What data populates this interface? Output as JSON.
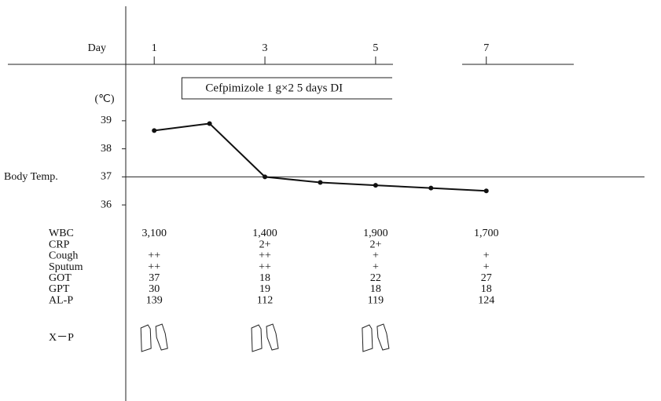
{
  "chart_data": {
    "type": "line",
    "x_label": "Day",
    "y_label": "Body Temp.",
    "y_unit": "(℃)",
    "x": [
      1,
      2,
      3,
      4,
      5,
      6,
      7
    ],
    "values": [
      38.65,
      38.9,
      37.0,
      36.8,
      36.7,
      36.6,
      36.5
    ],
    "color": "#111111",
    "xlim": [
      0.5,
      10
    ],
    "xticks": [
      1,
      3,
      5,
      7
    ],
    "ylim": [
      35.5,
      39.5
    ],
    "yticks": [
      36,
      37,
      38,
      39
    ],
    "hline": 37,
    "treatment": {
      "label": "Cefpimizole 1 g×2  5 days DI",
      "start": 1.5,
      "end": 5.3
    },
    "table": {
      "rows": [
        {
          "label": "WBC",
          "values": [
            "3,100",
            "1,400",
            "1,900",
            "1,700"
          ]
        },
        {
          "label": "CRP",
          "values": [
            null,
            "2+",
            "2+",
            null
          ]
        },
        {
          "label": "Cough",
          "values": [
            "++",
            "++",
            "+",
            "+"
          ]
        },
        {
          "label": "Sputum",
          "values": [
            "++",
            "++",
            "+",
            "+"
          ]
        },
        {
          "label": "GOT",
          "values": [
            "37",
            "18",
            "22",
            "27"
          ]
        },
        {
          "label": "GPT",
          "values": [
            "30",
            "19",
            "18",
            "18"
          ]
        },
        {
          "label": "AL-P",
          "values": [
            "139",
            "112",
            "119",
            "124"
          ]
        }
      ],
      "image_row_label": "X－P"
    }
  }
}
